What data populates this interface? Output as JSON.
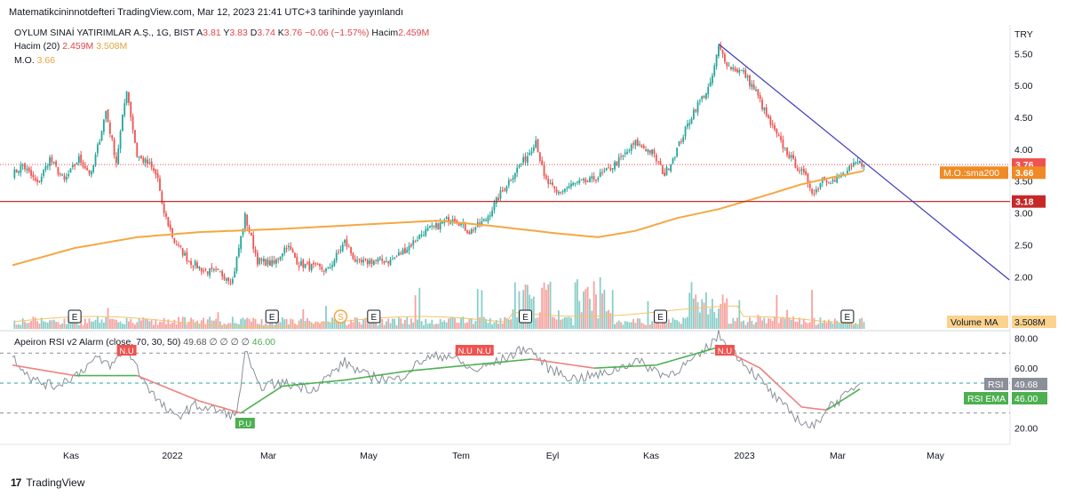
{
  "header": {
    "published": "Matematikcininnotdefteri TradingView.com, Mar 12, 2023 21:41 UTC+3 tarihinde yayınlandı"
  },
  "symbol_legend": {
    "name": "OYLUM SINAİ YATIRIMLAR A.Ş., 1G, BIST",
    "open_label": "A",
    "open": "3.81",
    "high_label": "Y",
    "high": "3.83",
    "low_label": "D",
    "low": "3.74",
    "close_label": "K",
    "close": "3.76",
    "change": "−0.06 (−1.57%)",
    "volume_label": "Hacim",
    "volume": "2.459M"
  },
  "volume_legend": {
    "label": "Hacim (20)",
    "value": "2.459M",
    "ma": "3.508M"
  },
  "ma_legend": {
    "label": "M.O.",
    "value": "3.66"
  },
  "rsi_legend": {
    "label": "Apeiron RSI v2 Alarm (close, 70, 30, 50)",
    "rsi": "49.68",
    "zeros": "∅ ∅ ∅ ∅",
    "ema": "46.00"
  },
  "colors": {
    "up": "#26a69a",
    "down": "#ef5350",
    "ma": "#f5a742",
    "trendline": "#3b3bbf",
    "support": "#b71c1c",
    "rsi": "#8a8f98",
    "rsi_ema_up": "#4caf50",
    "rsi_ema_down": "#ef7f7f"
  },
  "footer": {
    "brand": "TradingView",
    "logo": "17"
  },
  "chart_data": [
    {
      "type": "candlestick",
      "title": "OYLUM SINAİ YATIRIMLAR A.Ş., 1G, BIST",
      "currency_label": "TRY",
      "x_ticks": [
        "Kas",
        "2022",
        "Mar",
        "May",
        "Tem",
        "Eyl",
        "Kas",
        "2023",
        "Mar",
        "May"
      ],
      "y_ticks": [
        "5.50",
        "5.00",
        "4.50",
        "4.00",
        "3.50",
        "3.00",
        "2.50",
        "2.00"
      ],
      "ylim": [
        1.6,
        5.95
      ],
      "anchors": [
        [
          0,
          3.6
        ],
        [
          5,
          3.75
        ],
        [
          12,
          3.45
        ],
        [
          18,
          3.85
        ],
        [
          25,
          3.5
        ],
        [
          32,
          3.85
        ],
        [
          38,
          3.6
        ],
        [
          45,
          4.6
        ],
        [
          50,
          3.8
        ],
        [
          55,
          4.95
        ],
        [
          60,
          3.9
        ],
        [
          66,
          3.75
        ],
        [
          70,
          3.55
        ],
        [
          72,
          3.1
        ],
        [
          78,
          2.55
        ],
        [
          85,
          2.25
        ],
        [
          92,
          2.1
        ],
        [
          100,
          2.05
        ],
        [
          106,
          1.95
        ],
        [
          112,
          2.95
        ],
        [
          118,
          2.25
        ],
        [
          126,
          2.2
        ],
        [
          132,
          2.5
        ],
        [
          138,
          2.2
        ],
        [
          145,
          2.15
        ],
        [
          152,
          2.1
        ],
        [
          160,
          2.55
        ],
        [
          166,
          2.2
        ],
        [
          174,
          2.25
        ],
        [
          182,
          2.25
        ],
        [
          190,
          2.45
        ],
        [
          198,
          2.7
        ],
        [
          205,
          2.8
        ],
        [
          212,
          2.95
        ],
        [
          220,
          2.7
        ],
        [
          228,
          2.9
        ],
        [
          235,
          3.3
        ],
        [
          242,
          3.65
        ],
        [
          248,
          3.9
        ],
        [
          252,
          4.15
        ],
        [
          256,
          3.55
        ],
        [
          262,
          3.3
        ],
        [
          270,
          3.45
        ],
        [
          278,
          3.5
        ],
        [
          286,
          3.65
        ],
        [
          293,
          3.85
        ],
        [
          300,
          4.1
        ],
        [
          308,
          3.95
        ],
        [
          314,
          3.6
        ],
        [
          320,
          4.0
        ],
        [
          328,
          4.6
        ],
        [
          336,
          5.0
        ],
        [
          340,
          5.6
        ],
        [
          345,
          5.3
        ],
        [
          352,
          5.2
        ],
        [
          358,
          4.9
        ],
        [
          364,
          4.45
        ],
        [
          370,
          4.1
        ],
        [
          376,
          3.8
        ],
        [
          382,
          3.55
        ],
        [
          386,
          3.3
        ],
        [
          390,
          3.55
        ],
        [
          396,
          3.5
        ],
        [
          402,
          3.65
        ],
        [
          407,
          3.79
        ],
        [
          410,
          3.76
        ]
      ],
      "ma_anchors": [
        [
          0,
          2.18
        ],
        [
          30,
          2.45
        ],
        [
          60,
          2.62
        ],
        [
          90,
          2.7
        ],
        [
          130,
          2.75
        ],
        [
          170,
          2.82
        ],
        [
          205,
          2.88
        ],
        [
          230,
          2.8
        ],
        [
          262,
          2.68
        ],
        [
          282,
          2.62
        ],
        [
          300,
          2.72
        ],
        [
          320,
          2.92
        ],
        [
          340,
          3.06
        ],
        [
          360,
          3.25
        ],
        [
          380,
          3.45
        ],
        [
          395,
          3.56
        ],
        [
          410,
          3.66
        ]
      ],
      "current_price": "3.76",
      "ma_tag": "M.O.:sma200",
      "ma_value": "3.66",
      "support": "3.18",
      "trendline": {
        "from": [
          340,
          5.65
        ],
        "to": [
          480,
          1.95
        ]
      },
      "events": [
        {
          "label": "E",
          "x": 30
        },
        {
          "label": "E",
          "x": 125
        },
        {
          "label": "S",
          "x": 158
        },
        {
          "label": "E",
          "x": 174
        },
        {
          "label": "E",
          "x": 247
        },
        {
          "label": "E",
          "x": 312
        },
        {
          "label": "E",
          "x": 402
        }
      ],
      "volume_ma_tag": "Volume MA",
      "volume_ma_value": "3.508M"
    },
    {
      "type": "line",
      "title": "Apeiron RSI v2 Alarm (close, 70, 30, 50)",
      "y_ticks": [
        "80.00",
        "60.00",
        "20.00"
      ],
      "ylim": [
        12,
        85
      ],
      "levels": [
        70,
        50,
        30
      ],
      "rsi_value": "49.68",
      "rsi_tag": "RSI",
      "ema_value": "46.00",
      "ema_tag": "RSI EMA",
      "rsi_anchors": [
        [
          0,
          68
        ],
        [
          10,
          52
        ],
        [
          20,
          48
        ],
        [
          30,
          55
        ],
        [
          40,
          66
        ],
        [
          48,
          62
        ],
        [
          55,
          73
        ],
        [
          62,
          55
        ],
        [
          70,
          38
        ],
        [
          78,
          27
        ],
        [
          88,
          35
        ],
        [
          98,
          32
        ],
        [
          108,
          28
        ],
        [
          112,
          72
        ],
        [
          118,
          48
        ],
        [
          130,
          50
        ],
        [
          145,
          46
        ],
        [
          160,
          64
        ],
        [
          170,
          55
        ],
        [
          185,
          52
        ],
        [
          198,
          66
        ],
        [
          210,
          69
        ],
        [
          222,
          58
        ],
        [
          235,
          65
        ],
        [
          248,
          74
        ],
        [
          258,
          60
        ],
        [
          270,
          53
        ],
        [
          285,
          56
        ],
        [
          300,
          65
        ],
        [
          315,
          55
        ],
        [
          330,
          67
        ],
        [
          340,
          82
        ],
        [
          350,
          67
        ],
        [
          360,
          52
        ],
        [
          370,
          36
        ],
        [
          380,
          24
        ],
        [
          386,
          20
        ],
        [
          392,
          34
        ],
        [
          400,
          40
        ],
        [
          408,
          49.68
        ]
      ],
      "ema_anchors": [
        [
          0,
          62
        ],
        [
          30,
          55
        ],
        [
          60,
          55
        ],
        [
          90,
          38
        ],
        [
          110,
          30
        ],
        [
          130,
          48
        ],
        [
          160,
          52
        ],
        [
          190,
          58
        ],
        [
          220,
          62
        ],
        [
          250,
          66
        ],
        [
          280,
          60
        ],
        [
          310,
          62
        ],
        [
          340,
          74
        ],
        [
          360,
          60
        ],
        [
          380,
          34
        ],
        [
          392,
          32
        ],
        [
          408,
          46
        ]
      ],
      "markers": [
        {
          "label": "N.U",
          "x": 55,
          "kind": "down"
        },
        {
          "label": "P.U",
          "x": 112,
          "kind": "up"
        },
        {
          "label": "N.U",
          "x": 218,
          "kind": "down"
        },
        {
          "label": "N.U",
          "x": 227,
          "kind": "down"
        },
        {
          "label": "N.U",
          "x": 343,
          "kind": "down"
        }
      ]
    }
  ]
}
